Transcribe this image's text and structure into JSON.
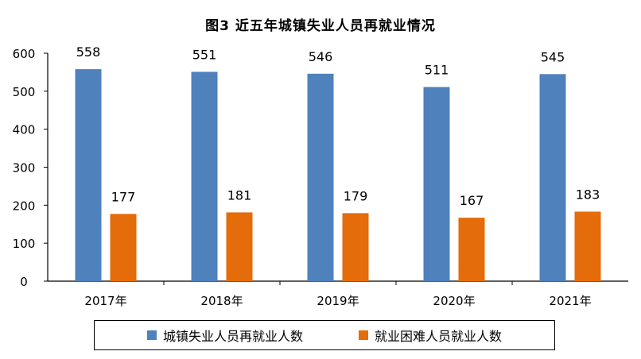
{
  "chart_data": {
    "type": "bar",
    "title": "图3  近五年城镇失业人员再就业情况",
    "categories": [
      "2017年",
      "2018年",
      "2019年",
      "2020年",
      "2021年"
    ],
    "series": [
      {
        "name": "城镇失业人员再就业人数",
        "color": "#4f81bd",
        "values": [
          558,
          551,
          546,
          511,
          545
        ]
      },
      {
        "name": "就业困难人员就业人数",
        "color": "#e46c0a",
        "values": [
          177,
          181,
          179,
          167,
          183
        ]
      }
    ],
    "yticks": [
      0,
      100,
      200,
      300,
      400,
      500,
      600
    ],
    "ylim": [
      0,
      600
    ],
    "grid": false,
    "legend_position": "bottom"
  }
}
